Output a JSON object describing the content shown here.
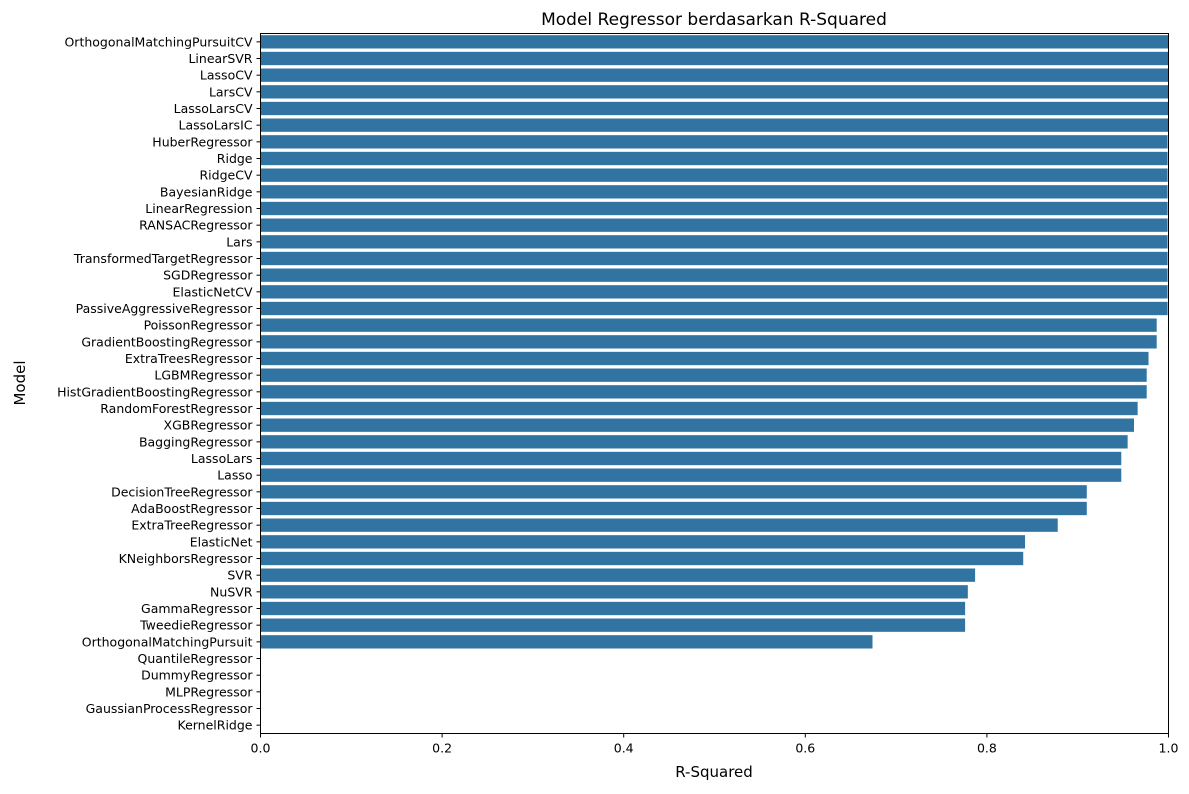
{
  "chart_data": {
    "type": "bar",
    "orientation": "horizontal",
    "title": "Model Regressor berdasarkan R-Squared",
    "xlabel": "R-Squared",
    "ylabel": "Model",
    "xlim": [
      0,
      1
    ],
    "xticks": [
      "0.0",
      "0.2",
      "0.4",
      "0.6",
      "0.8",
      "1.0"
    ],
    "bar_color": "#3274a1",
    "categories": [
      "OrthogonalMatchingPursuitCV",
      "LinearSVR",
      "LassoCV",
      "LarsCV",
      "LassoLarsCV",
      "LassoLarsIC",
      "HuberRegressor",
      "Ridge",
      "RidgeCV",
      "BayesianRidge",
      "LinearRegression",
      "RANSACRegressor",
      "Lars",
      "TransformedTargetRegressor",
      "SGDRegressor",
      "ElasticNetCV",
      "PassiveAggressiveRegressor",
      "PoissonRegressor",
      "GradientBoostingRegressor",
      "ExtraTreesRegressor",
      "LGBMRegressor",
      "HistGradientBoostingRegressor",
      "RandomForestRegressor",
      "XGBRegressor",
      "BaggingRegressor",
      "LassoLars",
      "Lasso",
      "DecisionTreeRegressor",
      "AdaBoostRegressor",
      "ExtraTreeRegressor",
      "ElasticNet",
      "KNeighborsRegressor",
      "SVR",
      "NuSVR",
      "GammaRegressor",
      "TweedieRegressor",
      "OrthogonalMatchingPursuit",
      "QuantileRegressor",
      "DummyRegressor",
      "MLPRegressor",
      "GaussianProcessRegressor",
      "KernelRidge"
    ],
    "values": [
      1.0,
      1.0,
      1.0,
      1.0,
      1.0,
      1.0,
      0.999,
      0.999,
      0.999,
      0.999,
      0.999,
      0.999,
      0.999,
      0.999,
      0.999,
      0.999,
      0.999,
      0.987,
      0.987,
      0.978,
      0.976,
      0.976,
      0.966,
      0.962,
      0.955,
      0.948,
      0.948,
      0.91,
      0.91,
      0.878,
      0.842,
      0.84,
      0.787,
      0.779,
      0.776,
      0.776,
      0.674,
      0.0,
      0.0,
      0.0,
      0.0,
      0.0
    ]
  }
}
